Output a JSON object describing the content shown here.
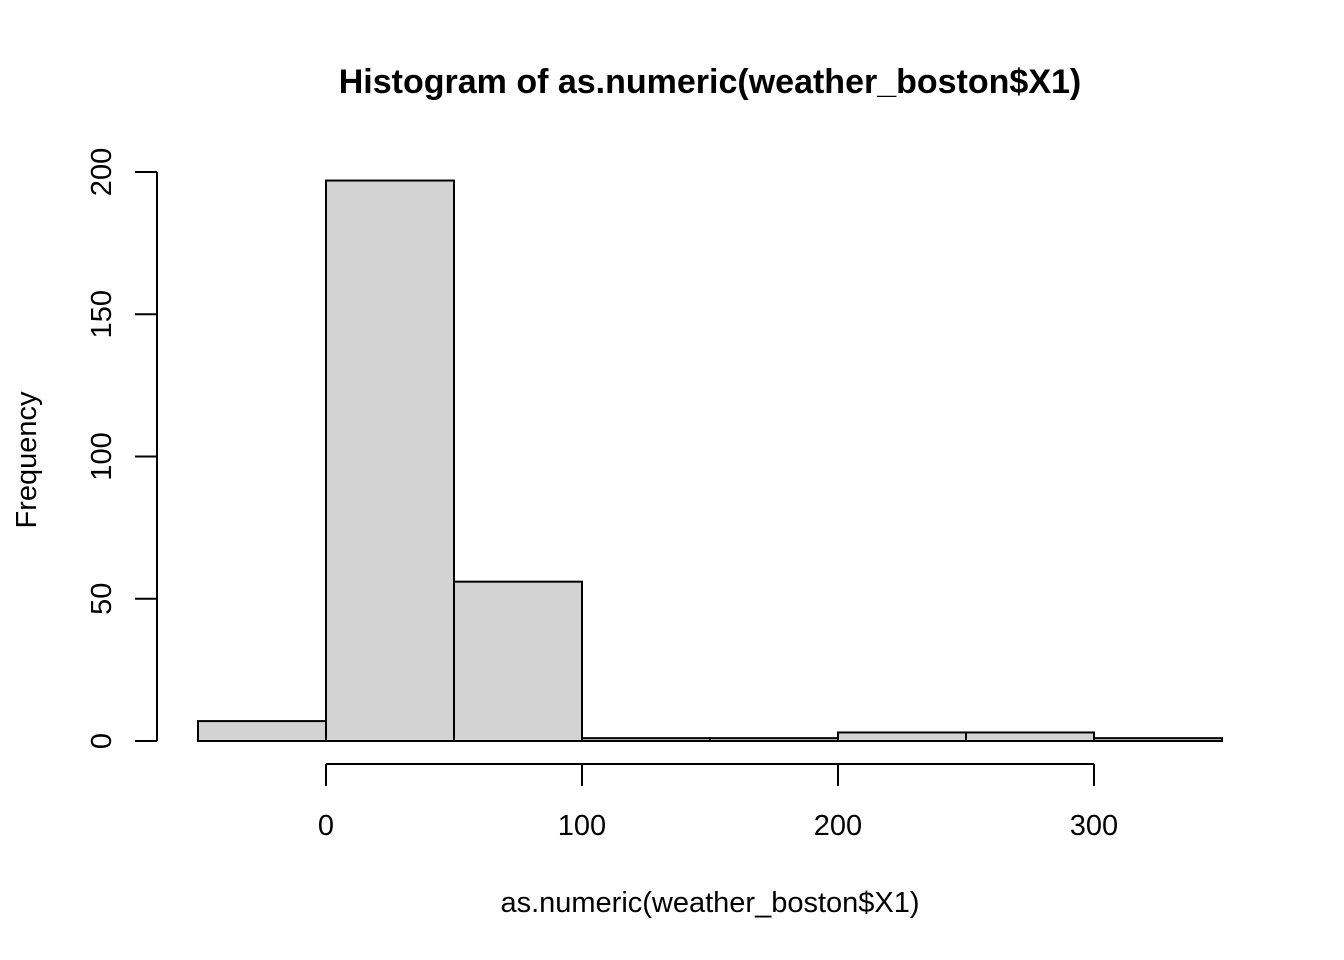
{
  "chart_data": {
    "type": "bar",
    "subtype": "histogram",
    "title": "Histogram of as.numeric(weather_boston$X1)",
    "xlabel": "as.numeric(weather_boston$X1)",
    "ylabel": "Frequency",
    "bin_edges": [
      -50,
      0,
      50,
      100,
      150,
      200,
      250,
      300,
      350
    ],
    "values": [
      7,
      197,
      56,
      1,
      1,
      3,
      3,
      1
    ],
    "xlim": [
      -50,
      350
    ],
    "ylim": [
      0,
      200
    ],
    "x_ticks": [
      0,
      100,
      200,
      300
    ],
    "x_tick_labels": [
      "0",
      "100",
      "200",
      "300"
    ],
    "y_ticks": [
      0,
      50,
      100,
      150,
      200
    ],
    "y_tick_labels": [
      "0",
      "50",
      "100",
      "150",
      "200"
    ],
    "bar_fill": "#d3d3d3",
    "bar_stroke": "#000000",
    "grid": false,
    "legend": "none"
  }
}
